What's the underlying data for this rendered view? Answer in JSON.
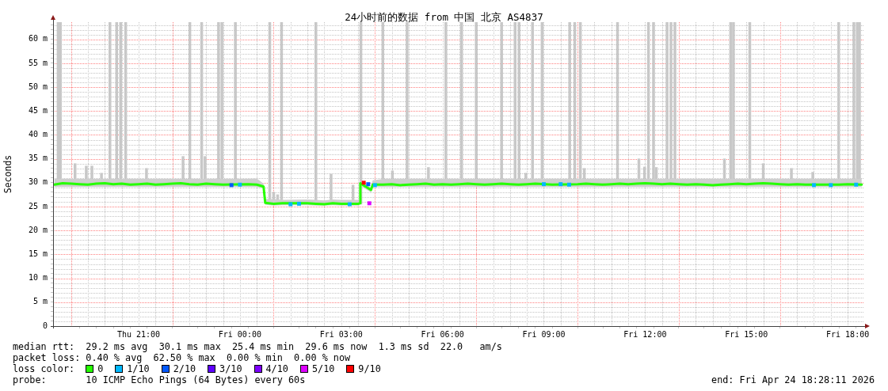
{
  "chart_data": {
    "type": "line",
    "title": "24小时前的数据 from 中国 北京 AS4837",
    "ylabel": "Seconds",
    "legend": "bottom",
    "legend_title": "loss color:",
    "annotations": [
      "median rtt:  29.2 ms avg  30.1 ms max  25.4 ms min  29.6 ms now  1.3 ms sd  22.0   am/s",
      "packet loss: 0.40 % avg  62.50 % max  0.00 % min  0.00 % now",
      "probe:       10 ICMP Echo Pings (64 Bytes) every 60s",
      "end: Fri Apr 24 18:28:11 2026"
    ],
    "grid": true,
    "marker": "square",
    "xlim": [
      "2026-04-23T18:28",
      "2026-04-24T18:28"
    ],
    "xticks": [
      {
        "value": "2026-04-23T19:30",
        "label": null
      },
      {
        "value": "2026-04-23T20:00",
        "label": null
      },
      {
        "value": "2026-04-23T20:30",
        "label": null
      },
      {
        "value": "2026-04-23T21:00",
        "label": "Thu 21:00"
      },
      {
        "value": "2026-04-23T21:30",
        "label": null
      },
      {
        "value": "2026-04-23T22:30",
        "label": null
      },
      {
        "value": "2026-04-23T23:00",
        "label": null
      },
      {
        "value": "2026-04-23T23:30",
        "label": null
      },
      {
        "value": "2026-04-24T00:00",
        "label": "Fri 00:00"
      },
      {
        "value": "2026-04-24T00:30",
        "label": null
      },
      {
        "value": "2026-04-24T01:30",
        "label": null
      },
      {
        "value": "2026-04-24T02:00",
        "label": null
      },
      {
        "value": "2026-04-24T02:30",
        "label": null
      },
      {
        "value": "2026-04-24T03:00",
        "label": "Fri 03:00"
      },
      {
        "value": "2026-04-24T03:30",
        "label": null
      },
      {
        "value": "2026-04-24T04:30",
        "label": null
      },
      {
        "value": "2026-04-24T05:00",
        "label": null
      },
      {
        "value": "2026-04-24T05:30",
        "label": null
      },
      {
        "value": "2026-04-24T06:00",
        "label": "Fri 06:00"
      },
      {
        "value": "2026-04-24T06:30",
        "label": null
      },
      {
        "value": "2026-04-24T07:30",
        "label": null
      },
      {
        "value": "2026-04-24T08:00",
        "label": null
      },
      {
        "value": "2026-04-24T08:30",
        "label": null
      },
      {
        "value": "2026-04-24T09:00",
        "label": "Fri 09:00"
      },
      {
        "value": "2026-04-24T09:30",
        "label": null
      },
      {
        "value": "2026-04-24T10:30",
        "label": null
      },
      {
        "value": "2026-04-24T11:00",
        "label": null
      },
      {
        "value": "2026-04-24T11:30",
        "label": null
      },
      {
        "value": "2026-04-24T12:00",
        "label": "Fri 12:00"
      },
      {
        "value": "2026-04-24T12:30",
        "label": null
      },
      {
        "value": "2026-04-24T13:30",
        "label": null
      },
      {
        "value": "2026-04-24T14:00",
        "label": null
      },
      {
        "value": "2026-04-24T14:30",
        "label": null
      },
      {
        "value": "2026-04-24T15:00",
        "label": "Fri 15:00"
      },
      {
        "value": "2026-04-24T15:30",
        "label": null
      },
      {
        "value": "2026-04-24T16:30",
        "label": null
      },
      {
        "value": "2026-04-24T17:00",
        "label": null
      },
      {
        "value": "2026-04-24T17:30",
        "label": null
      },
      {
        "value": "2026-04-24T18:00",
        "label": "Fri 18:00"
      }
    ],
    "ylim": [
      0,
      63.6
    ],
    "yticks": [
      0,
      {
        "value": 1,
        "label": null
      },
      {
        "value": 2,
        "label": null
      },
      {
        "value": 3,
        "label": null
      },
      {
        "value": 4,
        "label": null
      },
      {
        "value": 5,
        "label": "5 m"
      },
      {
        "value": 6,
        "label": null
      },
      {
        "value": 7,
        "label": null
      },
      {
        "value": 8,
        "label": null
      },
      {
        "value": 9,
        "label": null
      },
      {
        "value": 10,
        "label": "10 m"
      },
      {
        "value": 11,
        "label": null
      },
      {
        "value": 12,
        "label": null
      },
      {
        "value": 13,
        "label": null
      },
      {
        "value": 14,
        "label": null
      },
      {
        "value": 15,
        "label": "15 m"
      },
      {
        "value": 16,
        "label": null
      },
      {
        "value": 17,
        "label": null
      },
      {
        "value": 18,
        "label": null
      },
      {
        "value": 19,
        "label": null
      },
      {
        "value": 20,
        "label": "20 m"
      },
      {
        "value": 21,
        "label": null
      },
      {
        "value": 22,
        "label": null
      },
      {
        "value": 23,
        "label": null
      },
      {
        "value": 24,
        "label": null
      },
      {
        "value": 25,
        "label": "25 m"
      },
      {
        "value": 26,
        "label": null
      },
      {
        "value": 27,
        "label": null
      },
      {
        "value": 28,
        "label": null
      },
      {
        "value": 29,
        "label": null
      },
      {
        "value": 30,
        "label": "30 m"
      },
      {
        "value": 31,
        "label": null
      },
      {
        "value": 32,
        "label": null
      },
      {
        "value": 33,
        "label": null
      },
      {
        "value": 34,
        "label": null
      },
      {
        "value": 35,
        "label": "35 m"
      },
      {
        "value": 36,
        "label": null
      },
      {
        "value": 37,
        "label": null
      },
      {
        "value": 38,
        "label": null
      },
      {
        "value": 39,
        "label": null
      },
      {
        "value": 40,
        "label": "40 m"
      },
      {
        "value": 41,
        "label": null
      },
      {
        "value": 42,
        "label": null
      },
      {
        "value": 43,
        "label": null
      },
      {
        "value": 44,
        "label": null
      },
      {
        "value": 45,
        "label": "45 m"
      },
      {
        "value": 46,
        "label": null
      },
      {
        "value": 47,
        "label": null
      },
      {
        "value": 48,
        "label": null
      },
      {
        "value": 49,
        "label": null
      },
      {
        "value": 50,
        "label": "50 m"
      },
      {
        "value": 51,
        "label": null
      },
      {
        "value": 52,
        "label": null
      },
      {
        "value": 53,
        "label": null
      },
      {
        "value": 54,
        "label": null
      },
      {
        "value": 55,
        "label": "55 m"
      },
      {
        "value": 56,
        "label": null
      },
      {
        "value": 57,
        "label": null
      },
      {
        "value": 58,
        "label": null
      },
      {
        "value": 59,
        "label": null
      },
      {
        "value": 60,
        "label": "60 m"
      },
      {
        "value": 61,
        "label": null
      },
      {
        "value": 62,
        "label": null
      },
      {
        "value": 63,
        "label": null
      }
    ],
    "ref_lines": [
      {
        "axis": "x",
        "value": "2026-04-23T19:00",
        "color": "#ff8080",
        "line_style": "dotted"
      },
      {
        "axis": "x",
        "value": "2026-04-23T22:00",
        "color": "#ff8080",
        "line_style": "dotted"
      },
      {
        "axis": "x",
        "value": "2026-04-24T01:00",
        "color": "#ff8080",
        "line_style": "dotted"
      },
      {
        "axis": "x",
        "value": "2026-04-24T04:00",
        "color": "#ff8080",
        "line_style": "dotted"
      },
      {
        "axis": "x",
        "value": "2026-04-24T07:00",
        "color": "#ff8080",
        "line_style": "dotted"
      },
      {
        "axis": "x",
        "value": "2026-04-24T10:00",
        "color": "#ff8080",
        "line_style": "dotted"
      },
      {
        "axis": "x",
        "value": "2026-04-24T13:00",
        "color": "#ff8080",
        "line_style": "dotted"
      },
      {
        "axis": "x",
        "value": "2026-04-24T16:00",
        "color": "#ff8080",
        "line_style": "dotted"
      }
    ],
    "series": [
      {
        "type": "bar",
        "color": "#c8c8c8",
        "x": [
          "2026-04-23T18:37",
          "2026-04-23T18:41",
          "2026-04-23T19:07",
          "2026-04-23T19:27",
          "2026-04-23T19:37",
          "2026-04-23T19:54",
          "2026-04-23T20:09",
          "2026-04-23T20:21",
          "2026-04-23T20:28",
          "2026-04-23T20:37",
          "2026-04-23T21:14",
          "2026-04-23T22:19",
          "2026-04-23T22:31",
          "2026-04-23T22:52",
          "2026-04-23T22:58",
          "2026-04-23T23:22",
          "2026-04-23T23:28",
          "2026-04-23T23:52",
          "2026-04-24T00:53",
          "2026-04-24T01:00",
          "2026-04-24T01:07",
          "2026-04-24T01:14",
          "2026-04-24T02:15",
          "2026-04-24T02:42",
          "2026-04-24T03:21",
          "2026-04-24T03:35",
          "2026-04-24T04:14",
          "2026-04-24T04:31",
          "2026-04-24T04:57",
          "2026-04-24T05:35",
          "2026-04-24T06:06",
          "2026-04-24T06:34",
          "2026-04-24T07:00",
          "2026-04-24T07:45",
          "2026-04-24T08:09",
          "2026-04-24T08:16",
          "2026-04-24T08:28",
          "2026-04-24T08:40",
          "2026-04-24T08:57",
          "2026-04-24T09:46",
          "2026-04-24T09:55",
          "2026-04-24T10:05",
          "2026-04-24T10:12",
          "2026-04-24T11:11",
          "2026-04-24T11:49",
          "2026-04-24T11:59",
          "2026-04-24T12:06",
          "2026-04-24T12:15",
          "2026-04-24T12:20",
          "2026-04-24T12:39",
          "2026-04-24T12:46",
          "2026-04-24T12:53",
          "2026-04-24T14:21",
          "2026-04-24T14:32",
          "2026-04-24T14:37",
          "2026-04-24T15:06",
          "2026-04-24T15:30",
          "2026-04-24T16:20",
          "2026-04-24T16:58",
          "2026-04-24T17:44",
          "2026-04-24T18:11",
          "2026-04-24T18:17",
          "2026-04-24T18:21"
        ],
        "base": [
          29.5,
          29.5,
          29.5,
          29.5,
          29.5,
          29.5,
          29.5,
          29.5,
          29.5,
          29.5,
          29.5,
          29.5,
          29.5,
          29.5,
          29.5,
          29.5,
          29.5,
          29.5,
          25.5,
          25.5,
          25.5,
          25.5,
          25.5,
          25.5,
          25.5,
          25.5,
          29.5,
          29.5,
          29.5,
          29.5,
          29.5,
          29.5,
          29.5,
          29.5,
          29.5,
          29.5,
          29.5,
          29.5,
          29.5,
          29.5,
          29.5,
          29.5,
          29.5,
          29.5,
          29.5,
          29.5,
          29.5,
          29.5,
          29.5,
          29.5,
          29.5,
          29.5,
          29.5,
          29.5,
          29.5,
          29.5,
          29.5,
          29.5,
          29.5,
          29.5,
          29.5,
          29.5,
          29.5
        ],
        "values": [
          34.1,
          34.1,
          4.5,
          4.0,
          4.0,
          2.5,
          34.1,
          34.1,
          34.1,
          34.1,
          3.5,
          6.0,
          34.1,
          34.1,
          6.0,
          34.1,
          34.1,
          34.1,
          38.1,
          2.5,
          2.0,
          38.1,
          38.1,
          6.3,
          4.0,
          38.1,
          34.1,
          3.0,
          34.1,
          3.7,
          34.1,
          34.1,
          34.1,
          34.1,
          34.1,
          34.1,
          2.5,
          34.1,
          34.1,
          34.1,
          34.1,
          34.1,
          3.5,
          34.1,
          5.5,
          3.8,
          34.1,
          34.1,
          3.7,
          34.1,
          34.1,
          34.1,
          5.5,
          34.1,
          34.1,
          34.1,
          4.5,
          3.5,
          2.7,
          34.1,
          34.1,
          34.1,
          34.1
        ]
      },
      {
        "name": "0",
        "color": "#26ff00",
        "marker": "none",
        "x": [
          "2026-04-23T18:30",
          "2026-04-23T18:45",
          "2026-04-23T19:00",
          "2026-04-23T19:15",
          "2026-04-23T19:30",
          "2026-04-23T19:45",
          "2026-04-23T20:00",
          "2026-04-23T20:15",
          "2026-04-23T20:30",
          "2026-04-23T20:45",
          "2026-04-23T21:00",
          "2026-04-23T21:15",
          "2026-04-23T21:30",
          "2026-04-23T21:45",
          "2026-04-23T22:00",
          "2026-04-23T22:15",
          "2026-04-23T22:30",
          "2026-04-23T22:45",
          "2026-04-23T23:00",
          "2026-04-23T23:15",
          "2026-04-23T23:30",
          "2026-04-24T00:15",
          "2026-04-24T00:30",
          "2026-04-24T00:42",
          "2026-04-24T00:45",
          "2026-04-24T01:00",
          "2026-04-24T01:15",
          "2026-04-24T02:00",
          "2026-04-24T02:15",
          "2026-04-24T02:30",
          "2026-04-24T02:45",
          "2026-04-24T03:00",
          "2026-04-24T03:30",
          "2026-04-24T03:33",
          "2026-04-24T03:34",
          "2026-04-24T03:53",
          "2026-04-24T03:56",
          "2026-04-24T04:15",
          "2026-04-24T04:30",
          "2026-04-24T04:45",
          "2026-04-24T05:00",
          "2026-04-24T05:15",
          "2026-04-24T05:30",
          "2026-04-24T05:45",
          "2026-04-24T06:00",
          "2026-04-24T06:15",
          "2026-04-24T06:30",
          "2026-04-24T06:45",
          "2026-04-24T07:00",
          "2026-04-24T07:15",
          "2026-04-24T07:30",
          "2026-04-24T07:45",
          "2026-04-24T08:00",
          "2026-04-24T08:15",
          "2026-04-24T08:30",
          "2026-04-24T08:45",
          "2026-04-24T09:15",
          "2026-04-24T10:00",
          "2026-04-24T10:15",
          "2026-04-24T10:30",
          "2026-04-24T10:45",
          "2026-04-24T11:00",
          "2026-04-24T11:15",
          "2026-04-24T11:30",
          "2026-04-24T11:45",
          "2026-04-24T12:00",
          "2026-04-24T12:15",
          "2026-04-24T12:30",
          "2026-04-24T12:45",
          "2026-04-24T13:00",
          "2026-04-24T13:15",
          "2026-04-24T13:30",
          "2026-04-24T13:45",
          "2026-04-24T14:00",
          "2026-04-24T14:15",
          "2026-04-24T14:30",
          "2026-04-24T14:45",
          "2026-04-24T15:00",
          "2026-04-24T15:15",
          "2026-04-24T15:30",
          "2026-04-24T15:45",
          "2026-04-24T16:00",
          "2026-04-24T16:15",
          "2026-04-24T16:30",
          "2026-04-24T16:45",
          "2026-04-24T17:15",
          "2026-04-24T17:45",
          "2026-04-24T18:00",
          "2026-04-24T18:25"
        ],
        "values": [
          29.6,
          29.9,
          29.8,
          29.7,
          29.6,
          29.8,
          29.9,
          29.7,
          29.8,
          29.6,
          29.7,
          29.8,
          29.6,
          29.7,
          29.8,
          29.9,
          29.7,
          29.6,
          29.8,
          29.7,
          29.6,
          29.7,
          29.6,
          29.2,
          25.8,
          25.6,
          25.7,
          25.7,
          25.6,
          25.5,
          25.7,
          25.6,
          25.6,
          25.7,
          29.9,
          28.5,
          29.6,
          29.6,
          29.7,
          29.5,
          29.6,
          29.7,
          29.8,
          29.6,
          29.7,
          29.6,
          29.7,
          29.8,
          29.7,
          29.6,
          29.7,
          29.8,
          29.7,
          29.6,
          29.7,
          29.8,
          29.6,
          29.7,
          29.8,
          29.7,
          29.6,
          29.7,
          29.8,
          29.7,
          29.8,
          29.9,
          29.8,
          29.7,
          29.8,
          29.7,
          29.6,
          29.7,
          29.6,
          29.5,
          29.6,
          29.7,
          29.8,
          29.7,
          29.8,
          29.9,
          29.8,
          29.7,
          29.6,
          29.7,
          29.6,
          29.6,
          29.6,
          29.7,
          29.6
        ],
        "lower": [
          29.1,
          29.1,
          29.1,
          29.1,
          29.1,
          29.1,
          29.1,
          29.1,
          29.1,
          29.1,
          29.1,
          29.1,
          29.1,
          29.1,
          29.1,
          29.1,
          29.1,
          29.1,
          29.1,
          29.1,
          29.1,
          29.1,
          29.1,
          28.9,
          25.4,
          25.2,
          25.3,
          25.3,
          25.2,
          25.2,
          25.3,
          25.2,
          25.2,
          25.3,
          29.4,
          28.0,
          29.1,
          29.1,
          29.1,
          29.1,
          29.1,
          29.1,
          29.1,
          29.1,
          29.1,
          29.1,
          29.1,
          29.1,
          29.1,
          29.1,
          29.1,
          29.1,
          29.1,
          29.1,
          29.1,
          29.1,
          29.1,
          29.1,
          29.1,
          29.1,
          29.1,
          29.1,
          29.1,
          29.1,
          29.1,
          29.1,
          29.1,
          29.1,
          29.1,
          29.1,
          29.1,
          29.1,
          29.1,
          29.1,
          29.1,
          29.1,
          29.1,
          29.1,
          29.1,
          29.1,
          29.1,
          29.1,
          29.1,
          29.1,
          29.1,
          29.1,
          29.1,
          29.1,
          29.1
        ],
        "upper": [
          30.8,
          30.8,
          30.8,
          30.8,
          30.8,
          30.8,
          30.8,
          30.8,
          30.8,
          30.8,
          30.8,
          30.8,
          30.8,
          30.8,
          30.8,
          30.8,
          30.8,
          30.8,
          30.8,
          30.8,
          30.8,
          30.8,
          30.9,
          29.8,
          26.6,
          26.6,
          26.4,
          26.5,
          26.4,
          26.3,
          26.5,
          26.4,
          26.4,
          26.2,
          30.6,
          29.0,
          30.5,
          30.8,
          30.8,
          30.8,
          30.8,
          30.8,
          30.8,
          30.8,
          30.8,
          30.8,
          30.8,
          30.8,
          30.8,
          30.8,
          30.8,
          30.8,
          30.8,
          30.8,
          30.8,
          30.8,
          30.8,
          30.8,
          30.8,
          30.8,
          30.8,
          30.8,
          30.8,
          30.8,
          30.8,
          30.8,
          30.8,
          30.8,
          30.8,
          30.8,
          30.8,
          30.8,
          30.8,
          30.8,
          30.8,
          30.8,
          30.8,
          30.8,
          30.8,
          30.8,
          30.8,
          30.8,
          30.8,
          30.8,
          30.8,
          30.8,
          30.8,
          30.8,
          30.8
        ]
      },
      {
        "name": "1/10",
        "type": "scatter",
        "color": "#00b8ff",
        "x": [
          "2026-04-24T00:00",
          "2026-04-24T01:30",
          "2026-04-24T01:45",
          "2026-04-24T03:15",
          "2026-04-24T04:00",
          "2026-04-24T09:00",
          "2026-04-24T09:30",
          "2026-04-24T09:45",
          "2026-04-24T17:00",
          "2026-04-24T17:30",
          "2026-04-24T18:15"
        ],
        "values": [
          29.6,
          25.5,
          25.6,
          25.5,
          29.5,
          29.7,
          29.7,
          29.6,
          29.5,
          29.5,
          29.6
        ]
      },
      {
        "name": "2/10",
        "type": "scatter",
        "color": "#0059ff",
        "x": [
          "2026-04-23T23:45",
          "2026-04-24T03:48"
        ],
        "values": [
          29.5,
          29.7
        ]
      },
      {
        "name": "3/10",
        "type": "scatter",
        "color": "#5e00ff"
      },
      {
        "name": "4/10",
        "type": "scatter",
        "color": "#7e00ff"
      },
      {
        "name": "5/10",
        "type": "scatter",
        "color": "#dd00ff",
        "x": [
          "2026-04-24T03:50"
        ],
        "values": [
          25.7
        ]
      },
      {
        "name": "9/10",
        "type": "scatter",
        "color": "#ff0000",
        "x": [
          "2026-04-24T03:40"
        ],
        "values": [
          30.0
        ]
      }
    ]
  }
}
